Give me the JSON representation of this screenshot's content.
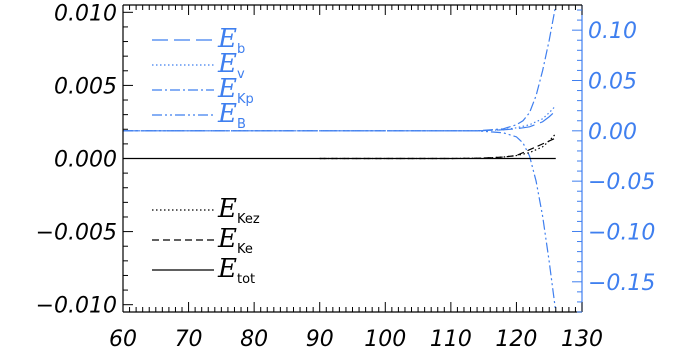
{
  "chart_data": {
    "type": "line",
    "title": "",
    "xlabel": "",
    "ylabel_left": "",
    "ylabel_right": "",
    "xlim": [
      60,
      130
    ],
    "ylim_left": [
      -0.0105,
      0.0105
    ],
    "ylim_right": [
      -0.18,
      0.125
    ],
    "x_ticks": [
      60,
      70,
      80,
      90,
      100,
      110,
      120,
      130
    ],
    "x_tick_labels": [
      "60",
      "70",
      "80",
      "90",
      "100",
      "110",
      "120",
      "130"
    ],
    "y_left_ticks": [
      0.01,
      0.005,
      0.0,
      -0.005,
      -0.01
    ],
    "y_left_tick_labels": [
      "0.010",
      "0.005",
      "0.000",
      "−0.005",
      "−0.010"
    ],
    "y_right_ticks": [
      0.1,
      0.05,
      0.0,
      -0.05,
      -0.1,
      -0.15
    ],
    "y_right_tick_labels": [
      "0.10",
      "0.05",
      "0.00",
      "−0.05",
      "−0.10",
      "−0.15"
    ],
    "grid": false,
    "colors": {
      "left_axis": "#000000",
      "right_axis": "#3f7fef"
    },
    "legend_right_axis": [
      {
        "sym": "E",
        "sub": "b",
        "dash": "long-dash"
      },
      {
        "sym": "E",
        "sub": "v",
        "dash": "dotted"
      },
      {
        "sym": "E",
        "sub": "Kp",
        "dash": "dash-dot"
      },
      {
        "sym": "E",
        "sub": "B",
        "dash": "dash-dot-dot"
      }
    ],
    "legend_left_axis": [
      {
        "sym": "E",
        "sub": "Kez",
        "dash": "dotted"
      },
      {
        "sym": "E",
        "sub": "Ke",
        "dash": "dashed"
      },
      {
        "sym": "E",
        "sub": "tot",
        "dash": "solid"
      }
    ],
    "series": [
      {
        "name": "E_b",
        "axis": "right",
        "dash": "long-dash",
        "x": [
          60,
          100,
          110,
          114,
          116,
          118,
          120,
          122,
          124,
          125,
          126
        ],
        "y": [
          0.0,
          0.0,
          0.0,
          0.0,
          0.0005,
          0.001,
          0.002,
          0.004,
          0.009,
          0.014,
          0.02
        ]
      },
      {
        "name": "E_v",
        "axis": "right",
        "dash": "dotted",
        "x": [
          60,
          100,
          110,
          114,
          116,
          118,
          120,
          122,
          124,
          125,
          126
        ],
        "y": [
          0.0,
          0.0,
          0.0,
          0.0,
          0.0005,
          0.001,
          0.003,
          0.006,
          0.012,
          0.018,
          0.025
        ]
      },
      {
        "name": "E_Kp",
        "axis": "right",
        "dash": "dash-dot",
        "x": [
          60,
          100,
          110,
          114,
          116,
          118,
          120,
          121,
          122,
          123,
          124,
          125,
          126
        ],
        "y": [
          0.0,
          0.0,
          0.0,
          0.0,
          0.001,
          0.002,
          0.006,
          0.01,
          0.018,
          0.035,
          0.06,
          0.09,
          0.125
        ]
      },
      {
        "name": "E_B",
        "axis": "right",
        "dash": "dash-dot-dot",
        "x": [
          60,
          100,
          110,
          114,
          116,
          118,
          120,
          121,
          122,
          123,
          124,
          125,
          126
        ],
        "y": [
          0.0,
          0.0,
          0.0,
          0.0,
          -0.001,
          -0.002,
          -0.006,
          -0.012,
          -0.025,
          -0.05,
          -0.085,
          -0.13,
          -0.18
        ]
      },
      {
        "name": "E_Kez",
        "axis": "left",
        "dash": "dotted",
        "x": [
          90,
          100,
          110,
          114,
          116,
          118,
          120,
          122,
          124,
          125,
          126
        ],
        "y": [
          0.0,
          0.0,
          0.0,
          2e-05,
          5e-05,
          0.0001,
          0.0002,
          0.0004,
          0.0008,
          0.0012,
          0.0017
        ]
      },
      {
        "name": "E_Ke",
        "axis": "left",
        "dash": "dashed",
        "x": [
          90,
          100,
          110,
          114,
          116,
          118,
          120,
          122,
          124,
          125,
          126
        ],
        "y": [
          0.0,
          0.0,
          0.0,
          2e-05,
          5e-05,
          0.0001,
          0.0002,
          0.0006,
          0.001,
          0.0012,
          0.0014
        ]
      },
      {
        "name": "E_tot",
        "axis": "left",
        "dash": "solid",
        "x": [
          60,
          100,
          110,
          120,
          126
        ],
        "y": [
          0.0,
          0.0,
          0.0,
          0.0,
          0.0
        ]
      }
    ]
  }
}
